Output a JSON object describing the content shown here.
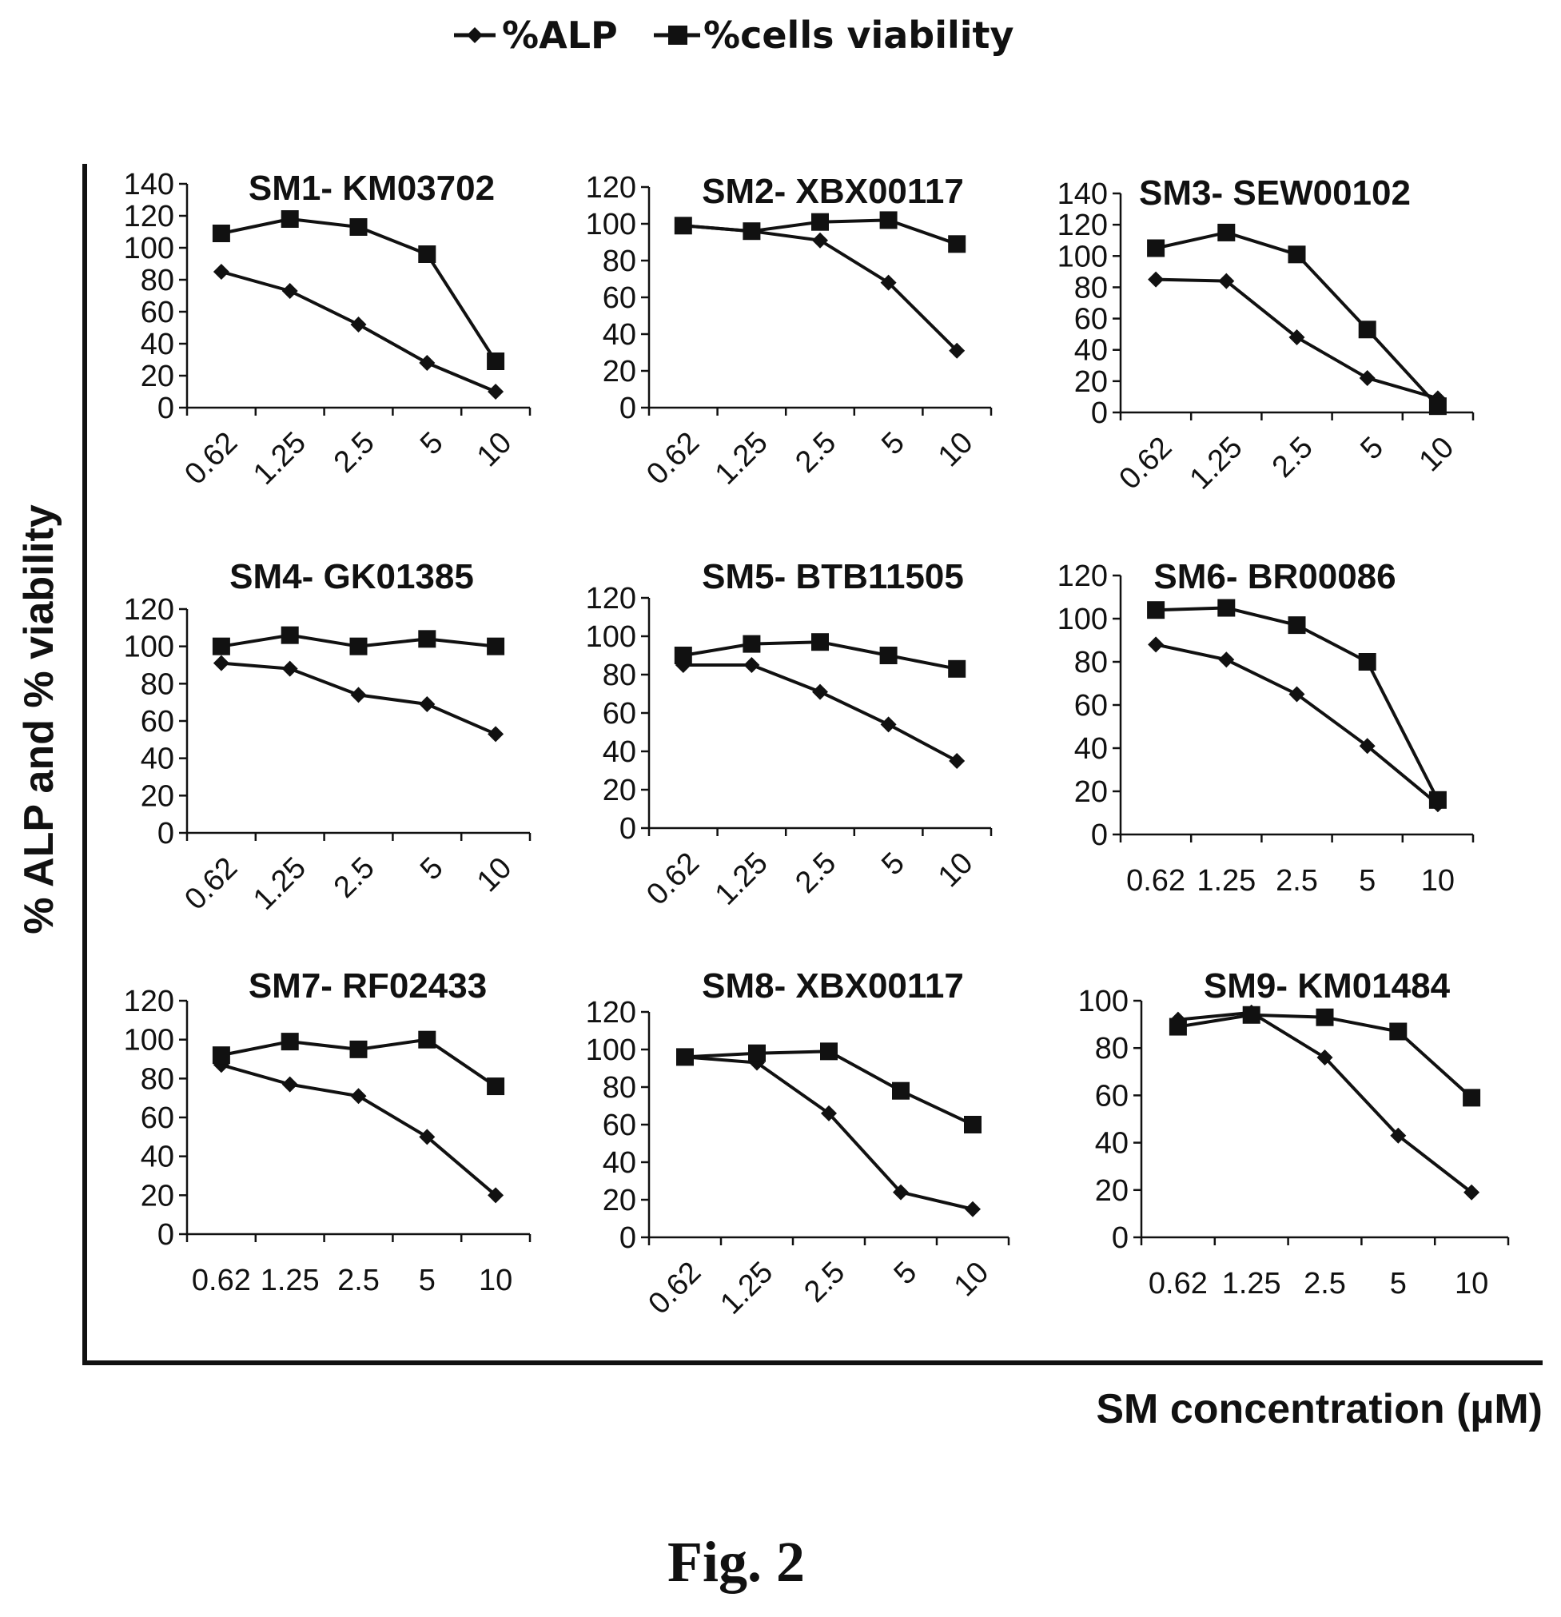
{
  "legend": {
    "alp_label": "%ALP",
    "viability_label": "%cells viability"
  },
  "figure": {
    "ylabel": "% ALP and % viability",
    "xlabel": "SM concentration (µM)",
    "caption": "Fig. 2"
  },
  "colors": {
    "ink": "#111111",
    "background": "#ffffff"
  },
  "chart_data": [
    {
      "type": "line",
      "title": "SM1- KM03702",
      "categories": [
        "0.62",
        "1.25",
        "2.5",
        "5",
        "10"
      ],
      "ylim": [
        0,
        140
      ],
      "yticks": [
        0,
        20,
        40,
        60,
        80,
        100,
        120,
        140
      ],
      "tick_rotation": -45,
      "series": [
        {
          "name": "%ALP",
          "marker": "diamond",
          "values": [
            85,
            73,
            52,
            28,
            10
          ]
        },
        {
          "name": "%cells viability",
          "marker": "square",
          "values": [
            109,
            118,
            113,
            96,
            29
          ]
        }
      ]
    },
    {
      "type": "line",
      "title": "SM2- XBX00117",
      "categories": [
        "0.62",
        "1.25",
        "2.5",
        "5",
        "10"
      ],
      "ylim": [
        0,
        120
      ],
      "yticks": [
        0,
        20,
        40,
        60,
        80,
        100,
        120
      ],
      "tick_rotation": -45,
      "series": [
        {
          "name": "%ALP",
          "marker": "diamond",
          "values": [
            99,
            96,
            91,
            68,
            31
          ]
        },
        {
          "name": "%cells viability",
          "marker": "square",
          "values": [
            99,
            96,
            101,
            102,
            89
          ]
        }
      ]
    },
    {
      "type": "line",
      "title": "SM3- SEW00102",
      "categories": [
        "0.62",
        "1.25",
        "2.5",
        "5",
        "10"
      ],
      "ylim": [
        0,
        140
      ],
      "yticks": [
        0,
        20,
        40,
        60,
        80,
        100,
        120,
        140
      ],
      "tick_rotation": -45,
      "series": [
        {
          "name": "%ALP",
          "marker": "diamond",
          "values": [
            85,
            84,
            48,
            22,
            9
          ]
        },
        {
          "name": "%cells viability",
          "marker": "square",
          "values": [
            105,
            115,
            101,
            53,
            4
          ]
        }
      ]
    },
    {
      "type": "line",
      "title": "SM4- GK01385",
      "categories": [
        "0.62",
        "1.25",
        "2.5",
        "5",
        "10"
      ],
      "ylim": [
        0,
        120
      ],
      "yticks": [
        0,
        20,
        40,
        60,
        80,
        100,
        120
      ],
      "tick_rotation": -45,
      "series": [
        {
          "name": "%ALP",
          "marker": "diamond",
          "values": [
            91,
            88,
            74,
            69,
            53
          ]
        },
        {
          "name": "%cells viability",
          "marker": "square",
          "values": [
            100,
            106,
            100,
            104,
            100
          ]
        }
      ]
    },
    {
      "type": "line",
      "title": "SM5- BTB11505",
      "categories": [
        "0.62",
        "1.25",
        "2.5",
        "5",
        "10"
      ],
      "ylim": [
        0,
        120
      ],
      "yticks": [
        0,
        20,
        40,
        60,
        80,
        100,
        120
      ],
      "tick_rotation": -45,
      "series": [
        {
          "name": "%ALP",
          "marker": "diamond",
          "values": [
            85,
            85,
            71,
            54,
            35
          ]
        },
        {
          "name": "%cells viability",
          "marker": "square",
          "values": [
            90,
            96,
            97,
            90,
            83
          ]
        }
      ]
    },
    {
      "type": "line",
      "title": "SM6- BR00086",
      "categories": [
        "0.62",
        "1.25",
        "2.5",
        "5",
        "10"
      ],
      "ylim": [
        0,
        120
      ],
      "yticks": [
        0,
        20,
        40,
        60,
        80,
        100,
        120
      ],
      "tick_rotation": 0,
      "series": [
        {
          "name": "%ALP",
          "marker": "diamond",
          "values": [
            88,
            81,
            65,
            41,
            14
          ]
        },
        {
          "name": "%cells viability",
          "marker": "square",
          "values": [
            104,
            105,
            97,
            80,
            16
          ]
        }
      ]
    },
    {
      "type": "line",
      "title": "SM7- RF02433",
      "categories": [
        "0.62",
        "1.25",
        "2.5",
        "5",
        "10"
      ],
      "ylim": [
        0,
        120
      ],
      "yticks": [
        0,
        20,
        40,
        60,
        80,
        100,
        120
      ],
      "tick_rotation": 0,
      "series": [
        {
          "name": "%ALP",
          "marker": "diamond",
          "values": [
            87,
            77,
            71,
            50,
            20
          ]
        },
        {
          "name": "%cells viability",
          "marker": "square",
          "values": [
            92,
            99,
            95,
            100,
            76
          ]
        }
      ]
    },
    {
      "type": "line",
      "title": "SM8- XBX00117",
      "categories": [
        "0.62",
        "1.25",
        "2.5",
        "5",
        "10"
      ],
      "ylim": [
        0,
        120
      ],
      "yticks": [
        0,
        20,
        40,
        60,
        80,
        100,
        120
      ],
      "tick_rotation": -45,
      "series": [
        {
          "name": "%ALP",
          "marker": "diamond",
          "values": [
            96,
            93,
            66,
            24,
            15
          ]
        },
        {
          "name": "%cells viability",
          "marker": "square",
          "values": [
            96,
            98,
            99,
            78,
            60
          ]
        }
      ]
    },
    {
      "type": "line",
      "title": "SM9- KM01484",
      "categories": [
        "0.62",
        "1.25",
        "2.5",
        "5",
        "10"
      ],
      "ylim": [
        0,
        100
      ],
      "yticks": [
        0,
        20,
        40,
        60,
        80,
        100
      ],
      "tick_rotation": 0,
      "series": [
        {
          "name": "%ALP",
          "marker": "diamond",
          "values": [
            92,
            95,
            76,
            43,
            19
          ]
        },
        {
          "name": "%cells viability",
          "marker": "square",
          "values": [
            89,
            94,
            93,
            87,
            59
          ]
        }
      ]
    }
  ]
}
